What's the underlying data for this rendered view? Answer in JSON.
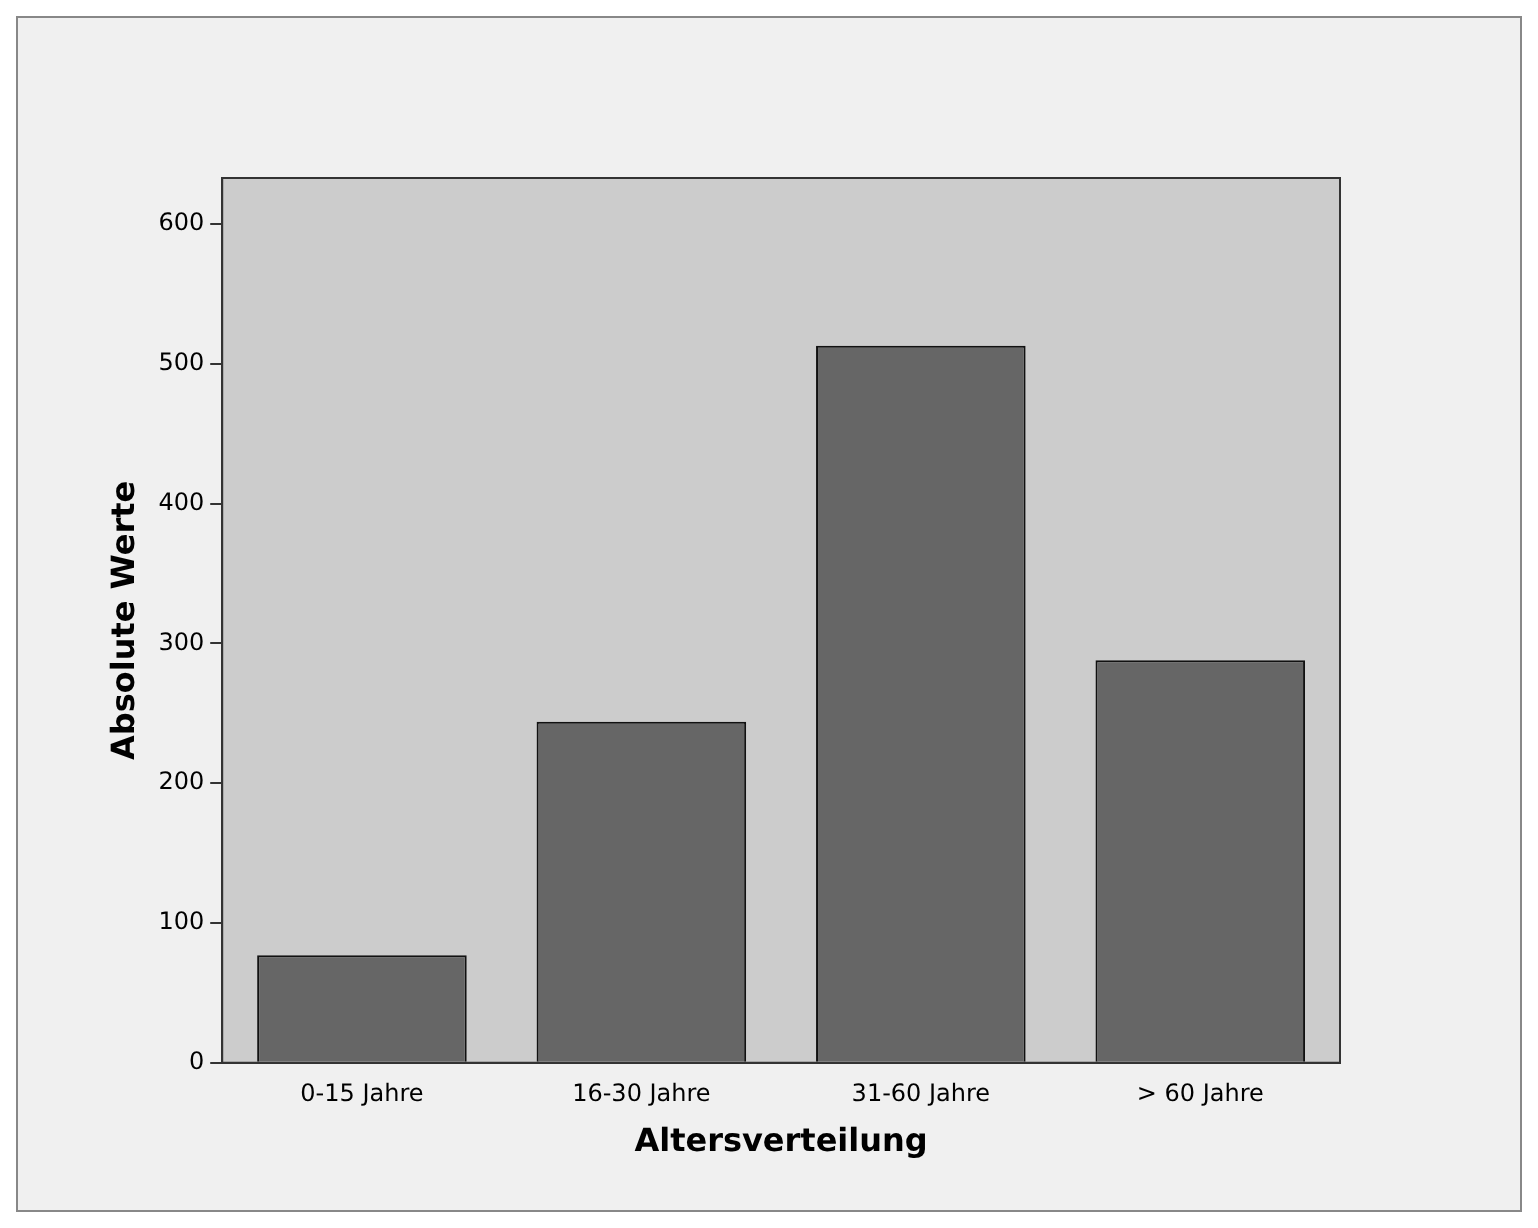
{
  "chart_data": {
    "type": "bar",
    "xlabel": "Altersverteilung",
    "ylabel": "Absolute Werte",
    "categories": [
      "0-15 Jahre",
      "16-30 Jahre",
      "31-60 Jahre",
      "> 60 Jahre"
    ],
    "values": [
      77,
      244,
      513,
      288
    ],
    "color": "#666666",
    "ylim": [
      0,
      633
    ],
    "yticks": [
      0,
      100,
      200,
      300,
      400,
      500,
      600
    ],
    "grid": false,
    "legend": false
  }
}
